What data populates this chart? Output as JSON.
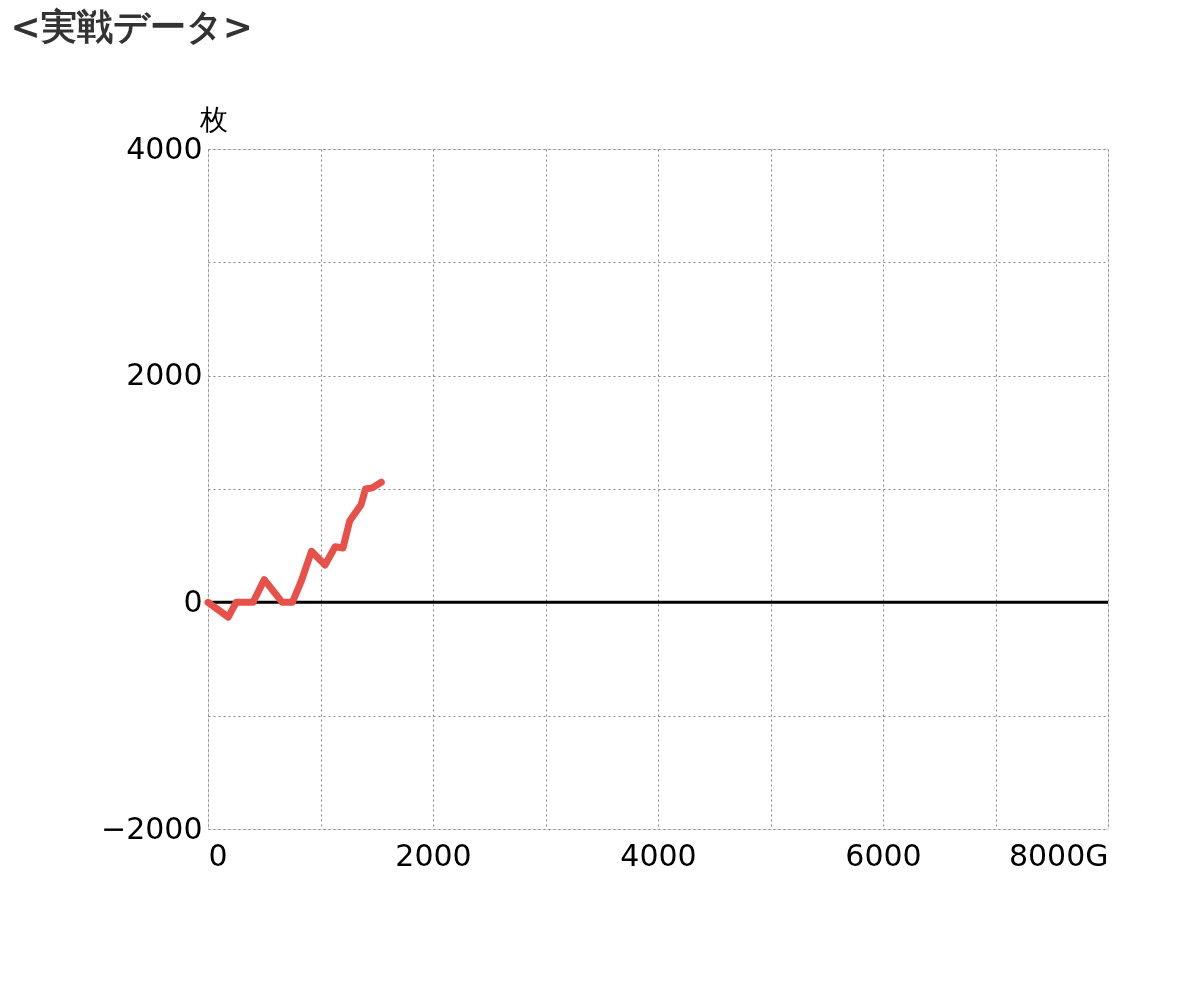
{
  "chart_data": {
    "type": "line",
    "title": "<実戦データ>",
    "ylabel": "枚",
    "x": [
      0,
      180,
      250,
      400,
      500,
      660,
      750,
      830,
      920,
      1040,
      1130,
      1200,
      1260,
      1360,
      1400,
      1460,
      1540
    ],
    "series": [
      {
        "color": "#e8504a",
        "values": [
          0,
          -130,
          0,
          0,
          200,
          0,
          0,
          190,
          450,
          330,
          490,
          480,
          720,
          860,
          1000,
          1010,
          1060
        ]
      }
    ],
    "xlim": [
      0,
      8000
    ],
    "xticks": [
      0,
      {
        "value": 1000,
        "label": null
      },
      2000,
      {
        "value": 3000,
        "label": null
      },
      4000,
      {
        "value": 5000,
        "label": null
      },
      6000,
      {
        "value": 7000,
        "label": null
      },
      {
        "value": 8000,
        "label": "8000G"
      }
    ],
    "ylim": [
      -2000,
      4000
    ],
    "yticks": [
      -2000,
      {
        "value": -1000,
        "label": null
      },
      0,
      {
        "value": 1000,
        "label": null
      },
      2000,
      {
        "value": 3000,
        "label": null
      },
      4000
    ],
    "ref_lines": [
      {
        "axis": "y",
        "value": 0,
        "color": "#000000"
      }
    ],
    "grid": true,
    "marker": "none",
    "line_style": "solid"
  }
}
